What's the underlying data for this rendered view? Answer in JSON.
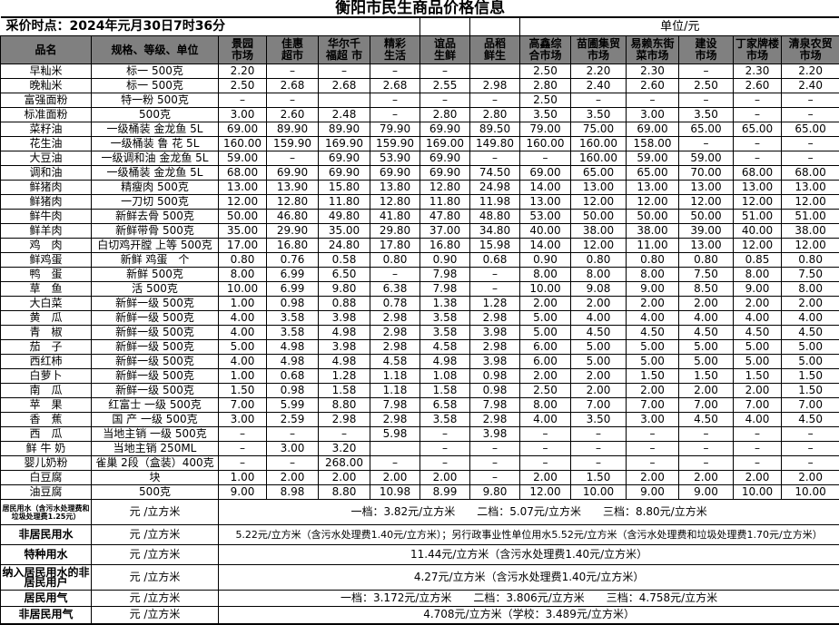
{
  "title": "衡阳市民生商品价格信息",
  "collect_time": "采价时点：2024年元月30日7时36分",
  "unit_label": "单位/元",
  "colors": {
    "header_bg": "#808080",
    "border": "#000000",
    "background": "#ffffff"
  },
  "columns": {
    "name": "品名",
    "spec": "规格、等级、单位",
    "markets": [
      "景园\n市场",
      "佳惠\n超市",
      "华尔千\n福超 市",
      "精彩\n生活",
      "谊品\n生鲜",
      "品稻\n鲜生",
      "高鑫综\n合市场",
      "苗圃集贸\n市场",
      "易赖东街\n菜市场",
      "建设\n市场",
      "丁家牌楼\n市场",
      "清泉农贸\n市场"
    ]
  },
  "rows": [
    {
      "name": "早籼米",
      "spec": "标一 500克",
      "prices": [
        "2.20",
        "–",
        "–",
        "–",
        "–",
        "",
        "2.50",
        "2.20",
        "2.30",
        "–",
        "2.30",
        "2.20"
      ]
    },
    {
      "name": "晚籼米",
      "spec": "标一 500克",
      "prices": [
        "2.50",
        "2.68",
        "2.68",
        "2.68",
        "2.55",
        "2.98",
        "2.80",
        "2.40",
        "2.60",
        "2.50",
        "2.60",
        "2.40"
      ]
    },
    {
      "name": "富强面粉",
      "spec": "特一粉  500克",
      "prices": [
        "–",
        "–",
        "",
        "–",
        "–",
        "–",
        "2.50",
        "–",
        "–",
        "–",
        "–",
        "–"
      ]
    },
    {
      "name": "标准面粉",
      "spec": "500克",
      "prices": [
        "3.00",
        "2.60",
        "2.48",
        "–",
        "2.80",
        "2.80",
        "3.50",
        "3.50",
        "3.00",
        "3.50",
        "–",
        "–"
      ]
    },
    {
      "name": "菜籽油",
      "spec": "一级桶装  金龙鱼  5L",
      "prices": [
        "69.00",
        "89.90",
        "89.90",
        "79.90",
        "69.90",
        "89.50",
        "79.00",
        "75.00",
        "69.00",
        "65.00",
        "65.00",
        "65.00"
      ]
    },
    {
      "name": "花生油",
      "spec": "一级桶装  鲁  花  5L",
      "prices": [
        "160.00",
        "159.90",
        "169.90",
        "159.90",
        "169.00",
        "149.80",
        "160.00",
        "160.00",
        "158.00",
        "–",
        "–",
        "–"
      ]
    },
    {
      "name": "大豆油",
      "spec": "一级调和油 金龙鱼 5L",
      "prices": [
        "59.00",
        "–",
        "69.90",
        "53.90",
        "69.90",
        "–",
        "–",
        "160.00",
        "59.00",
        "59.00",
        "–",
        "–"
      ]
    },
    {
      "name": "调和油",
      "spec": "一级桶装  金龙鱼  5L",
      "prices": [
        "68.00",
        "69.90",
        "69.90",
        "69.90",
        "69.90",
        "74.50",
        "69.00",
        "65.00",
        "65.00",
        "70.00",
        "68.00",
        "68.00"
      ]
    },
    {
      "name": "鲜猪肉",
      "spec": "精瘦肉  500克",
      "prices": [
        "13.00",
        "13.90",
        "15.80",
        "13.80",
        "12.80",
        "24.98",
        "14.00",
        "13.00",
        "13.00",
        "13.00",
        "13.00",
        "13.00"
      ]
    },
    {
      "name": "鲜猪肉",
      "spec": "一刀切  500克",
      "prices": [
        "12.00",
        "12.80",
        "11.80",
        "12.80",
        "11.80",
        "11.98",
        "13.00",
        "12.00",
        "12.00",
        "12.00",
        "12.00",
        "12.00"
      ]
    },
    {
      "name": "鲜牛肉",
      "spec": "新鲜去骨 500克",
      "prices": [
        "50.00",
        "46.80",
        "49.80",
        "41.80",
        "47.80",
        "48.80",
        "53.00",
        "50.00",
        "50.00",
        "50.00",
        "51.00",
        "51.00"
      ]
    },
    {
      "name": "鲜羊肉",
      "spec": "新鲜带骨 500克",
      "prices": [
        "35.00",
        "29.90",
        "35.00",
        "29.80",
        "37.00",
        "34.80",
        "40.00",
        "38.00",
        "38.00",
        "39.00",
        "40.00",
        "38.00"
      ]
    },
    {
      "name": "鸡　肉",
      "spec": "白切鸡开膛 上等 500克",
      "prices": [
        "17.00",
        "16.80",
        "24.80",
        "17.80",
        "16.80",
        "15.98",
        "14.00",
        "12.00",
        "11.00",
        "13.00",
        "12.00",
        "12.00"
      ]
    },
    {
      "name": "鲜鸡蛋",
      "spec": "新鲜 鸡蛋　个",
      "prices": [
        "0.80",
        "0.76",
        "0.58",
        "0.80",
        "0.90",
        "0.68",
        "0.90",
        "0.80",
        "0.80",
        "0.80",
        "0.85",
        "0.80"
      ]
    },
    {
      "name": "鸭　蛋",
      "spec": "新鲜  500克",
      "prices": [
        "8.00",
        "6.99",
        "6.50",
        "–",
        "7.98",
        "–",
        "8.00",
        "8.00",
        "8.00",
        "7.50",
        "8.00",
        "7.50"
      ]
    },
    {
      "name": "草　鱼",
      "spec": "活  500克",
      "prices": [
        "10.00",
        "6.99",
        "9.80",
        "6.38",
        "7.98",
        "–",
        "10.00",
        "9.08",
        "9.00",
        "8.50",
        "9.00",
        "8.00"
      ]
    },
    {
      "name": "大白菜",
      "spec": "新鲜一级 500克",
      "prices": [
        "1.00",
        "0.98",
        "0.88",
        "0.78",
        "1.38",
        "1.28",
        "2.00",
        "2.00",
        "2.00",
        "2.00",
        "2.00",
        "2.00"
      ]
    },
    {
      "name": "黄　瓜",
      "spec": "新鲜一级 500克",
      "prices": [
        "4.00",
        "3.58",
        "3.98",
        "2.98",
        "3.58",
        "2.98",
        "5.00",
        "4.00",
        "4.00",
        "4.00",
        "4.00",
        "4.00"
      ]
    },
    {
      "name": "青　椒",
      "spec": "新鲜一级 500克",
      "prices": [
        "4.00",
        "3.58",
        "4.98",
        "2.98",
        "3.58",
        "3.98",
        "5.00",
        "4.50",
        "4.50",
        "4.50",
        "4.50",
        "4.50"
      ]
    },
    {
      "name": "茄　子",
      "spec": "新鲜一级 500克",
      "prices": [
        "5.00",
        "4.98",
        "3.98",
        "2.98",
        "4.58",
        "2.98",
        "6.00",
        "5.00",
        "5.00",
        "5.00",
        "5.00",
        "5.00"
      ]
    },
    {
      "name": "西红柿",
      "spec": "新鲜一级 500克",
      "prices": [
        "4.00",
        "4.98",
        "4.98",
        "4.58",
        "4.98",
        "3.98",
        "6.00",
        "5.00",
        "5.00",
        "5.00",
        "5.00",
        "5.00"
      ]
    },
    {
      "name": "白萝卜",
      "spec": "新鲜一级 500克",
      "prices": [
        "1.00",
        "0.68",
        "1.28",
        "1.18",
        "1.08",
        "0.98",
        "2.00",
        "2.00",
        "1.50",
        "1.50",
        "1.50",
        "1.50"
      ]
    },
    {
      "name": "南　瓜",
      "spec": "新鲜一级 500克",
      "prices": [
        "1.50",
        "0.98",
        "1.58",
        "1.18",
        "1.58",
        "0.98",
        "2.50",
        "2.00",
        "2.00",
        "2.00",
        "2.00",
        "1.50"
      ]
    },
    {
      "name": "苹　果",
      "spec": "红富士  一级  500克",
      "prices": [
        "7.00",
        "5.99",
        "8.80",
        "7.98",
        "6.58",
        "7.98",
        "8.00",
        "7.00",
        "7.00",
        "7.00",
        "7.00",
        "7.00"
      ]
    },
    {
      "name": "香　蕉",
      "spec": "国 产 一级  500克",
      "prices": [
        "3.00",
        "2.59",
        "2.98",
        "2.98",
        "3.58",
        "2.98",
        "4.00",
        "3.50",
        "3.00",
        "4.50",
        "4.00",
        "4.50"
      ]
    },
    {
      "name": "西　瓜",
      "spec": "当地主销 一级  500克",
      "prices": [
        "–",
        "–",
        "–",
        "5.98",
        "–",
        "3.98",
        "–",
        "–",
        "–",
        "–",
        "–",
        "–"
      ]
    },
    {
      "name": "鲜 牛 奶",
      "spec": "当地主销  250ML",
      "prices": [
        "–",
        "3.00",
        "3.20",
        "",
        "–",
        "–",
        "–",
        "–",
        "–",
        "–",
        "–",
        "–"
      ]
    },
    {
      "name": "婴儿奶粉",
      "spec": "雀巢 2段（盒装）400克",
      "prices": [
        "–",
        "–",
        "268.00",
        "–",
        "–",
        "–",
        "–",
        "–",
        "–",
        "–",
        "–",
        "–"
      ]
    },
    {
      "name": "白豆腐",
      "spec": "块",
      "prices": [
        "1.00",
        "2.00",
        "2.00",
        "2.00",
        "2.00",
        "–",
        "2.00",
        "1.50",
        "2.00",
        "2.00",
        "2.00",
        "2.00"
      ]
    },
    {
      "name": "油豆腐",
      "spec": "500克",
      "prices": [
        "9.00",
        "8.98",
        "8.80",
        "10.98",
        "8.99",
        "9.80",
        "12.00",
        "10.00",
        "9.00",
        "9.00",
        "10.00",
        "10.00"
      ]
    }
  ],
  "utility_rows": [
    {
      "label": "居民用水（含污水处理费和\n垃圾处理费1.25元）",
      "label_small": true,
      "unit": "元 /立方米",
      "value": "一档：3.82元/立方米　　二档：5.07元/立方米　　三档：8.80元/立方米",
      "value_small": false
    },
    {
      "label": "非居民用水",
      "label_small": false,
      "unit": "元 /立方米",
      "value": "5.22元/立方米（含污水处理费1.40元/立方米）；另行政事业性单位用水5.52元/立方米（含污水处理费和垃圾处理费1.70元/立方米）",
      "value_small": true
    },
    {
      "label": "特种用水",
      "label_small": false,
      "unit": "元 /立方米",
      "value": "11.44元/立方米（含污水处理费1.40元/立方米）",
      "value_small": false
    },
    {
      "label": "纳入居民用水的非\n居民用户",
      "label_small": false,
      "unit": "元 /立方米",
      "value": "4.27元/立方米（含污水处理费1.40元/立方米）",
      "value_small": false
    },
    {
      "label": "居民用气",
      "label_small": false,
      "unit": "元 /立方米",
      "value": "一档：3.172元/立方米　　二档：3.806元/立方米　　三档：4.758元/立方米",
      "value_small": false
    },
    {
      "label": "非居民用气",
      "label_small": false,
      "unit": "元 /立方米",
      "value": "4.708元/立方米（学校：3.489元/立方米）",
      "value_small": false
    }
  ]
}
